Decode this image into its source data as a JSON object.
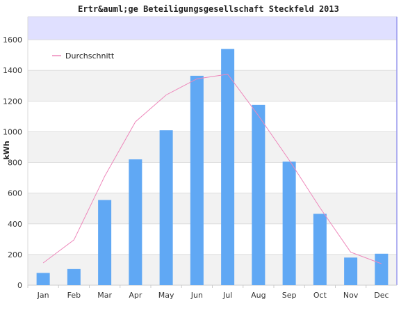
{
  "chart_data": {
    "type": "bar",
    "title": "Ertr&auml;ge Beteiligungsgesellschaft Steckfeld 2013",
    "ylabel": "kWh",
    "xlabel": "",
    "ylim": [
      0,
      1750
    ],
    "yticks": [
      0,
      200,
      400,
      600,
      800,
      1000,
      1200,
      1400,
      1600
    ],
    "categories": [
      "Jan",
      "Feb",
      "Mar",
      "Apr",
      "May",
      "Jun",
      "Jul",
      "Aug",
      "Sep",
      "Oct",
      "Nov",
      "Dec"
    ],
    "series": [
      {
        "type": "bar",
        "color": "#60a8f4",
        "values": [
          80,
          105,
          555,
          820,
          1010,
          1365,
          1540,
          1175,
          805,
          465,
          180,
          205
        ]
      },
      {
        "type": "line",
        "name": "Durchschnitt",
        "color": "#ee88bb",
        "values": [
          145,
          295,
          710,
          1065,
          1240,
          1345,
          1375,
          1105,
          815,
          505,
          215,
          140
        ]
      }
    ],
    "legend": {
      "position": "top-left"
    },
    "grid": true,
    "band_colors": [
      "#f2f2f2",
      "#ffffff"
    ],
    "top_band_color": "#e0e0ff"
  }
}
